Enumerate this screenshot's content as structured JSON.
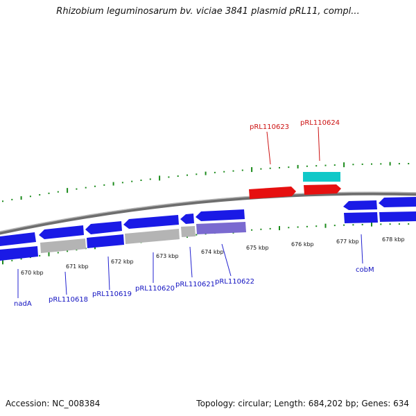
{
  "title": "Rhizobium leguminosarum bv. viciae 3841 plasmid pRL11, compl...",
  "footer": {
    "accession": "Accession: NC_008384",
    "topology": "Topology: circular; Length: 684,202 bp; Genes: 634"
  },
  "colors": {
    "forward_gene": "#1a1ae6",
    "reverse_gene_red": "#e61010",
    "cyan_gene": "#10c8c8",
    "pseudo_gray": "#b4b4b4",
    "purple_gene": "#7a6ad0",
    "backbone": "#888888",
    "tick_green": "#1a8a1a"
  },
  "scale_labels": [
    "670 kbp",
    "671 kbp",
    "672 kbp",
    "673 kbp",
    "674 kbp",
    "675 kbp",
    "676 kbp",
    "677 kbp",
    "678 kbp"
  ],
  "gene_labels": {
    "blue": [
      "nadA",
      "pRL110618",
      "pRL110619",
      "pRL110620",
      "pRL110621",
      "pRL110622",
      "cobM"
    ],
    "red": [
      "pRL110623",
      "pRL110624"
    ]
  }
}
